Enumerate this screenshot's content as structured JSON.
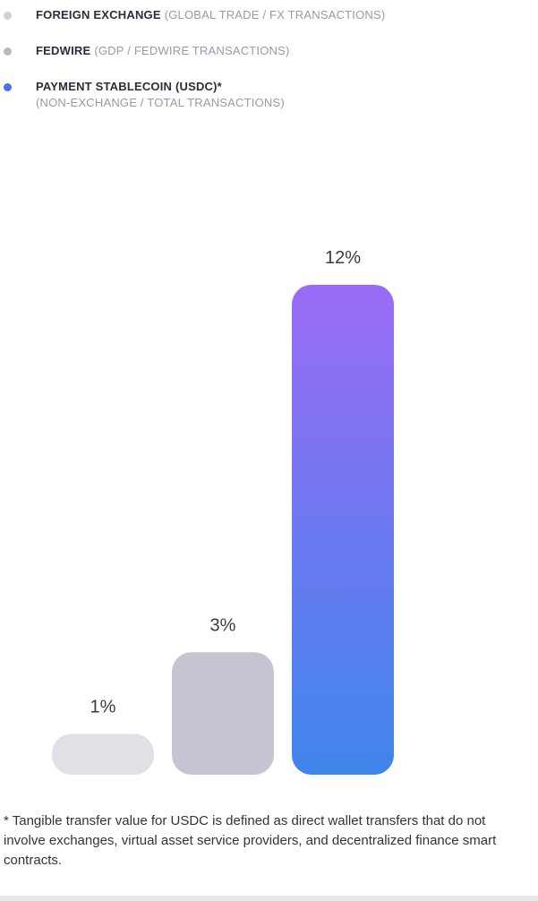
{
  "chart_data": {
    "type": "bar",
    "categories": [
      "FOREIGN EXCHANGE",
      "FEDWIRE",
      "PAYMENT STABLECOIN (USDC)*"
    ],
    "descriptions": [
      "(GLOBAL TRADE / FX TRANSACTIONS)",
      "(GDP / FEDWIRE TRANSACTIONS)",
      "(NON-EXCHANGE / TOTAL TRANSACTIONS)"
    ],
    "values": [
      1,
      3,
      12
    ],
    "value_labels": [
      "1%",
      "3%",
      "12%"
    ],
    "colors": [
      "#e1e0e7",
      "#c6c4d0",
      [
        "#9b6cf6",
        "#3f86ea"
      ]
    ],
    "legend_colors": [
      "#cfcfd4",
      "#b9b9c0",
      "#4a6fe0"
    ],
    "ylim": [
      0,
      12
    ],
    "footnote": "* Tangible transfer value for USDC is defined as direct wallet transfers that do not involve exchanges, virtual asset service providers, and decentralized finance smart contracts."
  }
}
